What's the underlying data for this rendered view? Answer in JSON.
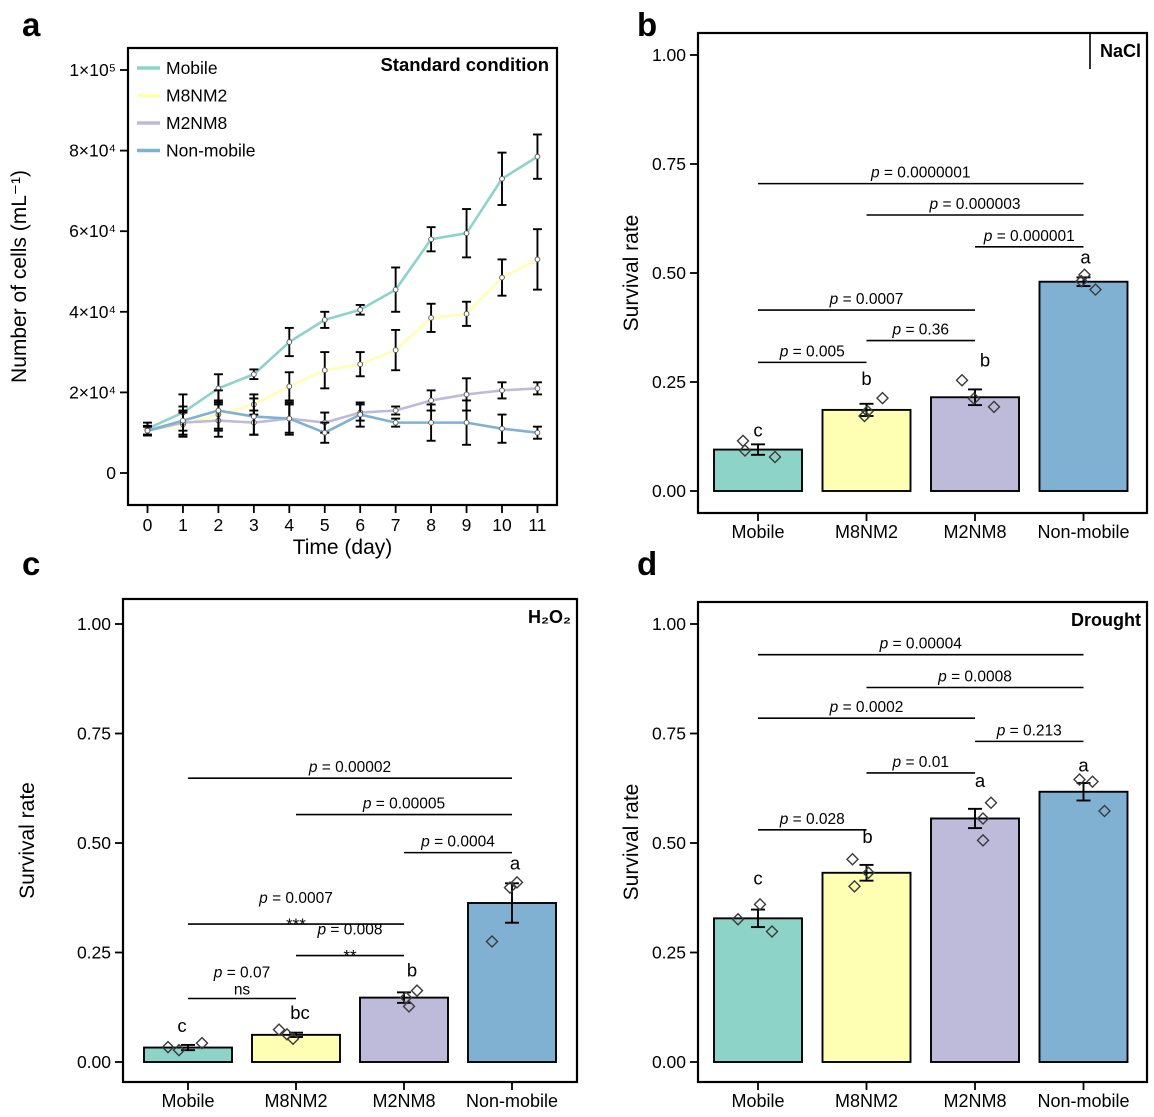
{
  "panel_letters": {
    "a": "a",
    "b": "b",
    "c": "c",
    "d": "d"
  },
  "chart_data": [
    {
      "panel": "a",
      "type": "line",
      "title": "Standard condition",
      "xlabel": "Time (day)",
      "ylabel": "Number of cells (mL⁻¹)",
      "x": [
        0,
        1,
        2,
        3,
        4,
        5,
        6,
        7,
        8,
        9,
        10,
        11
      ],
      "ylim": [
        0,
        100000
      ],
      "yticks": [
        {
          "v": 0,
          "label": "0"
        },
        {
          "v": 20000,
          "label": "2×10⁴"
        },
        {
          "v": 40000,
          "label": "4×10⁴"
        },
        {
          "v": 60000,
          "label": "6×10⁴"
        },
        {
          "v": 80000,
          "label": "8×10⁴"
        },
        {
          "v": 100000,
          "label": "1×10⁵"
        }
      ],
      "legend_position": "top-left",
      "grid": false,
      "series": [
        {
          "name": "Mobile",
          "color": "#8dd3c7",
          "values": [
            11000,
            15000,
            21000,
            24500,
            32500,
            38000,
            40500,
            45500,
            58000,
            59500,
            73000,
            78500
          ],
          "errors": [
            1500,
            4500,
            3500,
            1200,
            3500,
            2000,
            1200,
            5500,
            3000,
            6000,
            6500,
            5500
          ]
        },
        {
          "name": "M8NM2",
          "color": "#ffffb3",
          "values": [
            10500,
            12000,
            14500,
            17000,
            21500,
            25500,
            27000,
            30500,
            38500,
            39500,
            48500,
            53000
          ],
          "errors": [
            1000,
            3000,
            3500,
            2500,
            3500,
            4500,
            3000,
            5000,
            3500,
            3000,
            4500,
            7500
          ]
        },
        {
          "name": "M2NM8",
          "color": "#bebada",
          "values": [
            10500,
            12500,
            13000,
            12500,
            13500,
            12500,
            15000,
            15500,
            18000,
            19500,
            20500,
            21000
          ],
          "errors": [
            1000,
            3000,
            4000,
            3000,
            3500,
            2500,
            2000,
            1000,
            2500,
            4000,
            2000,
            1500
          ]
        },
        {
          "name": "Non-mobile",
          "color": "#80b1d3",
          "values": [
            10500,
            13000,
            15500,
            14000,
            13500,
            10000,
            14500,
            12500,
            12500,
            12500,
            11000,
            10000
          ],
          "errors": [
            1200,
            3500,
            5000,
            4500,
            4000,
            2500,
            3000,
            1000,
            4500,
            5500,
            3500,
            1500
          ]
        }
      ]
    },
    {
      "panel": "b",
      "type": "bar",
      "condition": "NaCl",
      "boxed_label": true,
      "ylabel": "Survival rate",
      "ylim": [
        0,
        1
      ],
      "yticks": [
        {
          "v": 0,
          "label": "0.00"
        },
        {
          "v": 0.25,
          "label": "0.25"
        },
        {
          "v": 0.5,
          "label": "0.50"
        },
        {
          "v": 0.75,
          "label": "0.75"
        },
        {
          "v": 1,
          "label": "1.00"
        }
      ],
      "categories": [
        "Mobile",
        "M8NM2",
        "M2NM8",
        "Non-mobile"
      ],
      "bars": [
        {
          "category": "Mobile",
          "value": 0.095,
          "error": 0.012,
          "color": "#8dd3c7",
          "letter": "c",
          "letter_v": 0.125,
          "letter_dx": 0,
          "points": [
            {
              "dx": -15,
              "v": 0.115
            },
            {
              "dx": -13,
              "v": 0.093
            },
            {
              "dx": 17,
              "v": 0.078
            }
          ]
        },
        {
          "category": "M8NM2",
          "value": 0.186,
          "error": 0.014,
          "color": "#ffffb3",
          "letter": "b",
          "letter_v": 0.243,
          "letter_dx": 0,
          "points": [
            {
              "dx": 1,
              "v": 0.183
            },
            {
              "dx": -2,
              "v": 0.172
            },
            {
              "dx": 16,
              "v": 0.213
            }
          ]
        },
        {
          "category": "M2NM8",
          "value": 0.215,
          "error": 0.018,
          "color": "#bebada",
          "letter": "b",
          "letter_v": 0.285,
          "letter_dx": 10,
          "points": [
            {
              "dx": -13,
              "v": 0.254
            },
            {
              "dx": -1,
              "v": 0.212
            },
            {
              "dx": 19,
              "v": 0.193
            }
          ]
        },
        {
          "category": "Non-mobile",
          "value": 0.48,
          "error": 0.01,
          "color": "#80b1d3",
          "letter": "a",
          "letter_v": 0.522,
          "letter_dx": 2,
          "points": [
            {
              "dx": 1,
              "v": 0.496
            },
            {
              "dx": -2,
              "v": 0.481
            },
            {
              "dx": 12,
              "v": 0.462
            }
          ]
        }
      ],
      "comparisons": [
        {
          "from": "Mobile",
          "to": "M8NM2",
          "p": "p = 0.005",
          "v": 0.295
        },
        {
          "from": "M8NM2",
          "to": "M2NM8",
          "p": "p = 0.36",
          "v": 0.345
        },
        {
          "from": "Mobile",
          "to": "M2NM8",
          "p": "p = 0.0007",
          "v": 0.415
        },
        {
          "from": "M2NM8",
          "to": "Non-mobile",
          "p": "p = 0.000001",
          "v": 0.56
        },
        {
          "from": "M8NM2",
          "to": "Non-mobile",
          "p": "p = 0.000003",
          "v": 0.633
        },
        {
          "from": "Mobile",
          "to": "Non-mobile",
          "p": "p = 0.0000001",
          "v": 0.705
        }
      ]
    },
    {
      "panel": "c",
      "type": "bar",
      "condition": "H₂O₂",
      "boxed_label": false,
      "ylabel": "Survival rate",
      "ylim": [
        0,
        1
      ],
      "yticks": [
        {
          "v": 0,
          "label": "0.00"
        },
        {
          "v": 0.25,
          "label": "0.25"
        },
        {
          "v": 0.5,
          "label": "0.50"
        },
        {
          "v": 0.75,
          "label": "0.75"
        },
        {
          "v": 1,
          "label": "1.00"
        }
      ],
      "categories": [
        "Mobile",
        "M8NM2",
        "M2NM8",
        "Non-mobile"
      ],
      "bars": [
        {
          "category": "Mobile",
          "value": 0.033,
          "error": 0.006,
          "color": "#8dd3c7",
          "letter": "c",
          "letter_v": 0.068,
          "letter_dx": -6,
          "points": [
            {
              "dx": -20,
              "v": 0.034
            },
            {
              "dx": -9,
              "v": 0.027
            },
            {
              "dx": 14,
              "v": 0.043
            }
          ]
        },
        {
          "category": "M8NM2",
          "value": 0.062,
          "error": 0.005,
          "color": "#ffffb3",
          "letter": "bc",
          "letter_v": 0.098,
          "letter_dx": 4,
          "points": [
            {
              "dx": -17,
              "v": 0.074
            },
            {
              "dx": -9,
              "v": 0.063
            },
            {
              "dx": -3,
              "v": 0.053
            }
          ]
        },
        {
          "category": "M2NM8",
          "value": 0.147,
          "error": 0.012,
          "color": "#bebada",
          "letter": "b",
          "letter_v": 0.195,
          "letter_dx": 8,
          "points": [
            {
              "dx": 13,
              "v": 0.163
            },
            {
              "dx": 2,
              "v": 0.147
            },
            {
              "dx": 5,
              "v": 0.127
            }
          ]
        },
        {
          "category": "Non-mobile",
          "value": 0.363,
          "error": 0.045,
          "color": "#80b1d3",
          "letter": "a",
          "letter_v": 0.44,
          "letter_dx": 3,
          "points": [
            {
              "dx": 5,
              "v": 0.41
            },
            {
              "dx": -2,
              "v": 0.398
            },
            {
              "dx": -20,
              "v": 0.275
            }
          ]
        }
      ],
      "comparisons": [
        {
          "from": "Mobile",
          "to": "M8NM2",
          "p": "p = 0.07",
          "sub": "ns",
          "v": 0.145
        },
        {
          "from": "M8NM2",
          "to": "M2NM8",
          "p": "p = 0.008",
          "sub": "**",
          "v": 0.243
        },
        {
          "from": "Mobile",
          "to": "M2NM8",
          "p": "p = 0.0007",
          "sub": "***",
          "v": 0.315
        },
        {
          "from": "M2NM8",
          "to": "Non-mobile",
          "p": "p = 0.0004",
          "v": 0.478
        },
        {
          "from": "M8NM2",
          "to": "Non-mobile",
          "p": "p = 0.00005",
          "v": 0.565
        },
        {
          "from": "Mobile",
          "to": "Non-mobile",
          "p": "p = 0.00002",
          "v": 0.648
        }
      ]
    },
    {
      "panel": "d",
      "type": "bar",
      "condition": "Drought",
      "boxed_label": false,
      "ylabel": "Survival rate",
      "ylim": [
        0,
        1
      ],
      "yticks": [
        {
          "v": 0,
          "label": "0.00"
        },
        {
          "v": 0.25,
          "label": "0.25"
        },
        {
          "v": 0.5,
          "label": "0.50"
        },
        {
          "v": 0.75,
          "label": "0.75"
        },
        {
          "v": 1,
          "label": "1.00"
        }
      ],
      "categories": [
        "Mobile",
        "M8NM2",
        "M2NM8",
        "Non-mobile"
      ],
      "bars": [
        {
          "category": "Mobile",
          "value": 0.328,
          "error": 0.02,
          "color": "#8dd3c7",
          "letter": "c",
          "letter_v": 0.405,
          "letter_dx": 0,
          "points": [
            {
              "dx": -20,
              "v": 0.326
            },
            {
              "dx": 2,
              "v": 0.36
            },
            {
              "dx": 14,
              "v": 0.298
            }
          ]
        },
        {
          "category": "M8NM2",
          "value": 0.432,
          "error": 0.018,
          "color": "#ffffb3",
          "letter": "b",
          "letter_v": 0.5,
          "letter_dx": 1,
          "points": [
            {
              "dx": -14,
              "v": 0.463
            },
            {
              "dx": 2,
              "v": 0.432
            },
            {
              "dx": -12,
              "v": 0.401
            }
          ]
        },
        {
          "category": "M2NM8",
          "value": 0.556,
          "error": 0.022,
          "color": "#bebada",
          "letter": "a",
          "letter_v": 0.628,
          "letter_dx": 5,
          "points": [
            {
              "dx": 16,
              "v": 0.592
            },
            {
              "dx": 8,
              "v": 0.556
            },
            {
              "dx": 8,
              "v": 0.506
            }
          ]
        },
        {
          "category": "Non-mobile",
          "value": 0.617,
          "error": 0.02,
          "color": "#80b1d3",
          "letter": "a",
          "letter_v": 0.663,
          "letter_dx": 0,
          "points": [
            {
              "dx": -4,
              "v": 0.645
            },
            {
              "dx": 9,
              "v": 0.64
            },
            {
              "dx": 21,
              "v": 0.573
            }
          ]
        }
      ],
      "comparisons": [
        {
          "from": "Mobile",
          "to": "M8NM2",
          "p": "p = 0.028",
          "v": 0.53
        },
        {
          "from": "M8NM2",
          "to": "M2NM8",
          "p": "p = 0.01",
          "v": 0.66
        },
        {
          "from": "M2NM8",
          "to": "Non-mobile",
          "p": "p = 0.213",
          "v": 0.732
        },
        {
          "from": "Mobile",
          "to": "M2NM8",
          "p": "p = 0.0002",
          "v": 0.785
        },
        {
          "from": "M8NM2",
          "to": "Non-mobile",
          "p": "p = 0.0008",
          "v": 0.855
        },
        {
          "from": "Mobile",
          "to": "Non-mobile",
          "p": "p = 0.00004",
          "v": 0.93
        }
      ]
    }
  ],
  "colors": {
    "Mobile": "#8dd3c7",
    "M8NM2": "#ffffb3",
    "M2NM8": "#bebada",
    "Non-mobile": "#80b1d3",
    "axis": "#000000",
    "point_stroke": "#3a3a3a"
  }
}
